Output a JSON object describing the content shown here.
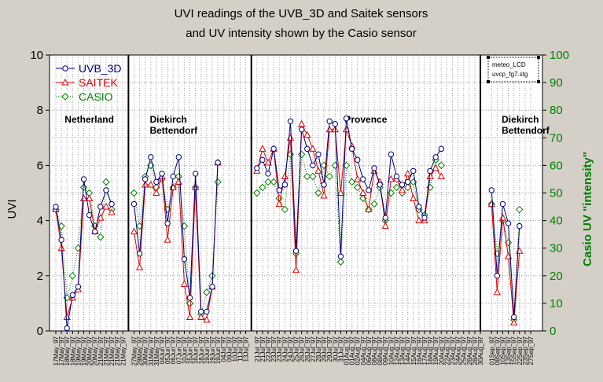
{
  "chart_data": {
    "type": "line",
    "title_line1": "UVI readings of the UVB_3D and Saitek sensors",
    "title_line2": "and UV intensity shown by the Casio sensor",
    "ylabel": "UVI",
    "ylabel_right": "Casio UV \"intensity\"",
    "ylim": [
      0,
      10
    ],
    "ylim_right": [
      0,
      100
    ],
    "y_ticks": [
      "0",
      "2",
      "4",
      "6",
      "8",
      "10"
    ],
    "y_ticks_right": [
      "0",
      "10",
      "20",
      "30",
      "40",
      "50",
      "60",
      "70",
      "80",
      "90",
      "100"
    ],
    "grid": true,
    "legend_position": "top-left",
    "file_box": [
      "meteo_LCD",
      "uvcp_fg7.stg"
    ],
    "colors": {
      "uvb3d": "#000080",
      "saitek": "#e00000",
      "casio": "#008000",
      "plot_bg": "#ffffff",
      "grid": "#a0a0a0"
    },
    "x": [
      "17May_97",
      "17May_97",
      "18May_97",
      "18May_97",
      "19May_97",
      "19May_97",
      "20May_97",
      "20May_97",
      "21May_97",
      "21May_97",
      "21May_97",
      "21May_97",
      "21May_97",
      "",
      "27May_97",
      "28May_97",
      "30May_97",
      "31May_97",
      "31May_97",
      "04Jun_97",
      "05Jun_97",
      "06Jun_97",
      "07Jun_97",
      "10Jun_97",
      "15Jun_97",
      "16Jun_97",
      "18Jun_97",
      "19Jun_97",
      "19Jun_97",
      "19Jun_97",
      "04Jul_97",
      "09Jul_97",
      "10Jul_97",
      "11Jul_97",
      "13Jul_97",
      "",
      "21Jul_97",
      "21Jul_97",
      "22Jul_97",
      "23Jul_97",
      "23Jul_97",
      "24Jul_97",
      "24Jul_97",
      "25Jul_97",
      "26Jul_97",
      "26Jul_97",
      "27Jul_97",
      "28Jul_97",
      "29Jul_97",
      "29Jul_97",
      "30Jul_97",
      "31Jul_97",
      "01Aug_97",
      "01Aug_97",
      "02Aug_97",
      "04Aug_97",
      "06Aug_97",
      "08Aug_97",
      "08Aug_97",
      "09Aug_97",
      "10Aug_97",
      "12Aug_97",
      "13Aug_97",
      "14Aug_97",
      "15Aug_97",
      "16Aug_97",
      "17Aug_97",
      "18Aug_97",
      "19Aug_97",
      "20Aug_97",
      "22Aug_97",
      "23Aug_97",
      "24Aug_97",
      "25Aug_97",
      "26Aug_97",
      "28Aug_97",
      "30Aug_97",
      "",
      "01Sep_97",
      "08Sep_97",
      "10Sep_97",
      "13Sep_97",
      "15Sep_97",
      "22Sep_97",
      "23Sep_97",
      "27Sep_97"
    ],
    "regions": [
      {
        "name": "Netherland",
        "start": 0,
        "end": 13
      },
      {
        "name": "Diekirch\nBettendorf",
        "start": 14,
        "end": 35
      },
      {
        "name": "Provence",
        "start": 36,
        "end": 76
      },
      {
        "name": "Diekirch\nBettendorf",
        "start": 77,
        "end": 87
      }
    ],
    "series": [
      {
        "name": "UVB_3D",
        "axis": "left",
        "color": "#000080",
        "marker": "circle",
        "values": [
          4.5,
          3.3,
          0.1,
          1.3,
          1.6,
          5.5,
          4.2,
          3.6,
          4.5,
          5.1,
          4.6,
          null,
          null,
          null,
          4.6,
          2.8,
          5.5,
          6.3,
          5.4,
          5.7,
          3.9,
          5.6,
          6.3,
          2.6,
          1.2,
          5.7,
          0.7,
          0.7,
          1.6,
          6.1,
          null,
          null,
          null,
          null,
          null,
          null,
          5.9,
          6.2,
          5.7,
          6.6,
          5.1,
          5.3,
          7.6,
          2.9,
          7.3,
          6.6,
          6.0,
          6.4,
          5.3,
          7.6,
          7.5,
          2.7,
          7.7,
          6.6,
          6.2,
          5.5,
          5.1,
          5.9,
          5.3,
          4.1,
          6.4,
          5.6,
          5.3,
          5.4,
          5.8,
          4.5,
          4.1,
          5.8,
          6.3,
          6.6,
          null,
          null,
          null,
          null,
          null,
          null,
          null,
          null,
          5.1,
          2.0,
          4.6,
          3.9,
          0.5,
          3.8,
          null,
          null
        ]
      },
      {
        "name": "SAITEK",
        "axis": "left",
        "color": "#e00000",
        "marker": "triangle",
        "values": [
          4.4,
          3.0,
          0.5,
          1.2,
          1.5,
          4.8,
          4.8,
          3.6,
          4.1,
          4.5,
          4.3,
          null,
          null,
          null,
          3.6,
          2.3,
          5.3,
          5.3,
          5.0,
          5.6,
          3.3,
          5.2,
          5.4,
          1.7,
          0.5,
          5.2,
          0.5,
          0.4,
          1.6,
          6.1,
          null,
          null,
          null,
          null,
          null,
          null,
          5.8,
          6.6,
          6.1,
          6.6,
          4.6,
          5.6,
          7.0,
          2.2,
          7.5,
          7.1,
          6.6,
          5.8,
          4.9,
          7.3,
          7.3,
          5.0,
          7.3,
          6.7,
          5.5,
          5.0,
          4.4,
          5.8,
          5.4,
          3.8,
          5.5,
          5.5,
          5.1,
          5.7,
          4.8,
          4.0,
          4.0,
          5.6,
          5.9,
          5.6,
          null,
          null,
          null,
          null,
          null,
          null,
          null,
          null,
          4.6,
          1.4,
          4.1,
          2.7,
          0.3,
          2.9,
          null,
          null
        ]
      },
      {
        "name": "CASIO",
        "axis": "right",
        "color": "#008000",
        "marker": "diamond",
        "values": [
          44,
          38,
          12,
          20,
          30,
          52,
          50,
          38,
          34,
          54,
          44,
          null,
          null,
          null,
          50,
          38,
          56,
          60,
          52,
          55,
          44,
          52,
          56,
          38,
          10,
          52,
          6,
          14,
          20,
          54,
          null,
          null,
          null,
          null,
          null,
          null,
          50,
          52,
          54,
          54,
          48,
          44,
          64,
          28,
          64,
          56,
          56,
          50,
          60,
          56,
          60,
          25,
          60,
          54,
          52,
          48,
          44,
          46,
          52,
          40,
          50,
          52,
          50,
          52,
          54,
          44,
          42,
          52,
          62,
          60,
          null,
          null,
          null,
          null,
          null,
          null,
          null,
          null,
          46,
          28,
          40,
          32,
          4,
          44,
          null,
          null
        ]
      }
    ]
  }
}
